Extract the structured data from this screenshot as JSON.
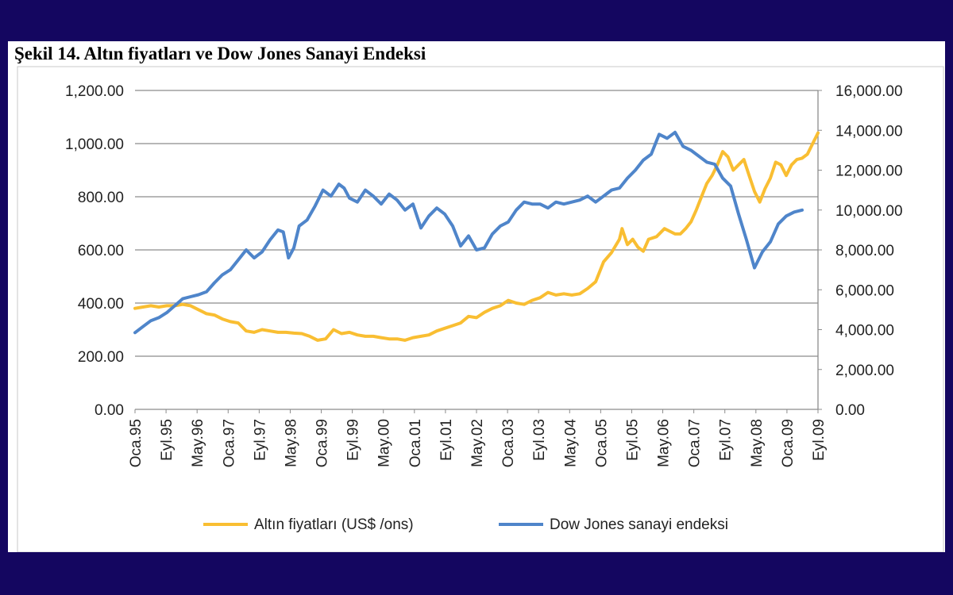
{
  "chart_data": {
    "type": "line",
    "title": "Şekil 14. Altın fiyatları ve Dow Jones Sanayi Endeksi",
    "xlabel": "",
    "ylabel_left": "",
    "ylabel_right": "",
    "x_ticks": [
      "Oca.95",
      "Eyl.95",
      "May.96",
      "Oca.97",
      "Eyl.97",
      "May.98",
      "Oca.99",
      "Eyl.99",
      "May.00",
      "Oca.01",
      "Eyl.01",
      "May.02",
      "Oca.03",
      "Eyl.03",
      "May.04",
      "Oca.05",
      "Eyl.05",
      "May.06",
      "Oca.07",
      "Eyl.07",
      "May.08",
      "Oca.09",
      "Eyl.09"
    ],
    "y_left_ticks": [
      "0.00",
      "200.00",
      "400.00",
      "600.00",
      "800.00",
      "1,000.00",
      "1,200.00"
    ],
    "y_right_ticks": [
      "0.00",
      "2,000.00",
      "4,000.00",
      "6,000.00",
      "8,000.00",
      "10,000.00",
      "12,000.00",
      "14,000.00",
      "16,000.00"
    ],
    "ylim_left": [
      0,
      1200
    ],
    "ylim_right": [
      0,
      16000
    ],
    "x_range_months": [
      0,
      176
    ],
    "grid": true,
    "legend_position": "bottom",
    "series": [
      {
        "name": "Altın fiyatları (US$ /ons)",
        "axis": "left",
        "color": "#F9BE32",
        "points": [
          [
            0,
            380
          ],
          [
            3,
            385
          ],
          [
            6,
            390
          ],
          [
            9,
            385
          ],
          [
            12,
            390
          ],
          [
            15,
            390
          ],
          [
            18,
            395
          ],
          [
            21,
            390
          ],
          [
            24,
            375
          ],
          [
            27,
            360
          ],
          [
            30,
            355
          ],
          [
            33,
            340
          ],
          [
            36,
            330
          ],
          [
            39,
            325
          ],
          [
            42,
            295
          ],
          [
            45,
            290
          ],
          [
            48,
            300
          ],
          [
            51,
            295
          ],
          [
            54,
            290
          ],
          [
            57,
            290
          ],
          [
            60,
            287
          ],
          [
            63,
            285
          ],
          [
            66,
            275
          ],
          [
            69,
            260
          ],
          [
            72,
            265
          ],
          [
            75,
            300
          ],
          [
            78,
            285
          ],
          [
            81,
            290
          ],
          [
            84,
            280
          ],
          [
            87,
            275
          ],
          [
            90,
            275
          ],
          [
            93,
            270
          ],
          [
            96,
            265
          ],
          [
            99,
            265
          ],
          [
            102,
            260
          ],
          [
            105,
            270
          ],
          [
            108,
            275
          ],
          [
            111,
            280
          ],
          [
            114,
            295
          ],
          [
            117,
            305
          ],
          [
            120,
            315
          ],
          [
            123,
            325
          ],
          [
            126,
            350
          ],
          [
            129,
            345
          ],
          [
            132,
            365
          ],
          [
            135,
            380
          ],
          [
            138,
            390
          ],
          [
            141,
            410
          ],
          [
            144,
            400
          ],
          [
            147,
            395
          ],
          [
            150,
            410
          ],
          [
            153,
            420
          ],
          [
            156,
            440
          ],
          [
            159,
            430
          ],
          [
            162,
            435
          ],
          [
            165,
            430
          ],
          [
            168,
            435
          ],
          [
            171,
            455
          ],
          [
            174,
            480
          ],
          [
            177,
            555
          ],
          [
            180,
            590
          ],
          [
            183,
            640
          ],
          [
            184,
            680
          ],
          [
            186,
            620
          ],
          [
            188,
            640
          ],
          [
            190,
            610
          ],
          [
            192,
            595
          ],
          [
            194,
            640
          ],
          [
            197,
            650
          ],
          [
            200,
            680
          ],
          [
            202,
            670
          ],
          [
            204,
            660
          ],
          [
            206,
            660
          ],
          [
            208,
            680
          ],
          [
            210,
            705
          ],
          [
            212,
            750
          ],
          [
            214,
            800
          ],
          [
            216,
            850
          ],
          [
            218,
            880
          ],
          [
            220,
            920
          ],
          [
            222,
            970
          ],
          [
            224,
            950
          ],
          [
            226,
            900
          ],
          [
            228,
            920
          ],
          [
            230,
            940
          ],
          [
            232,
            880
          ],
          [
            234,
            820
          ],
          [
            236,
            780
          ],
          [
            238,
            830
          ],
          [
            240,
            870
          ],
          [
            242,
            930
          ],
          [
            244,
            920
          ],
          [
            246,
            880
          ],
          [
            248,
            920
          ],
          [
            250,
            940
          ],
          [
            252,
            945
          ],
          [
            254,
            960
          ],
          [
            256,
            1000
          ],
          [
            258,
            1040
          ]
        ]
      },
      {
        "name": "Dow Jones sanayi endeksi",
        "axis": "right",
        "color": "#4F85CA",
        "points": [
          [
            0,
            3850
          ],
          [
            3,
            4150
          ],
          [
            6,
            4450
          ],
          [
            9,
            4600
          ],
          [
            12,
            4850
          ],
          [
            15,
            5200
          ],
          [
            18,
            5550
          ],
          [
            21,
            5650
          ],
          [
            24,
            5750
          ],
          [
            27,
            5900
          ],
          [
            30,
            6350
          ],
          [
            33,
            6750
          ],
          [
            36,
            7000
          ],
          [
            39,
            7500
          ],
          [
            42,
            8000
          ],
          [
            45,
            7600
          ],
          [
            48,
            7900
          ],
          [
            51,
            8500
          ],
          [
            54,
            9000
          ],
          [
            56,
            8900
          ],
          [
            58,
            7600
          ],
          [
            60,
            8100
          ],
          [
            62,
            9200
          ],
          [
            65,
            9500
          ],
          [
            68,
            10200
          ],
          [
            71,
            11000
          ],
          [
            74,
            10700
          ],
          [
            77,
            11300
          ],
          [
            79,
            11100
          ],
          [
            81,
            10600
          ],
          [
            84,
            10400
          ],
          [
            87,
            11000
          ],
          [
            90,
            10700
          ],
          [
            93,
            10300
          ],
          [
            96,
            10800
          ],
          [
            99,
            10500
          ],
          [
            102,
            10000
          ],
          [
            105,
            10300
          ],
          [
            108,
            9100
          ],
          [
            111,
            9700
          ],
          [
            114,
            10100
          ],
          [
            117,
            9800
          ],
          [
            120,
            9200
          ],
          [
            123,
            8200
          ],
          [
            126,
            8700
          ],
          [
            129,
            8000
          ],
          [
            132,
            8100
          ],
          [
            135,
            8800
          ],
          [
            138,
            9200
          ],
          [
            141,
            9400
          ],
          [
            144,
            10000
          ],
          [
            147,
            10400
          ],
          [
            150,
            10300
          ],
          [
            153,
            10300
          ],
          [
            156,
            10100
          ],
          [
            159,
            10400
          ],
          [
            162,
            10300
          ],
          [
            165,
            10400
          ],
          [
            168,
            10500
          ],
          [
            171,
            10700
          ],
          [
            174,
            10400
          ],
          [
            177,
            10700
          ],
          [
            180,
            11000
          ],
          [
            183,
            11100
          ],
          [
            186,
            11600
          ],
          [
            189,
            12000
          ],
          [
            192,
            12500
          ],
          [
            195,
            12800
          ],
          [
            198,
            13800
          ],
          [
            201,
            13600
          ],
          [
            204,
            13900
          ],
          [
            207,
            13200
          ],
          [
            210,
            13000
          ],
          [
            213,
            12700
          ],
          [
            216,
            12400
          ],
          [
            219,
            12300
          ],
          [
            222,
            11600
          ],
          [
            225,
            11200
          ],
          [
            228,
            9800
          ],
          [
            231,
            8500
          ],
          [
            234,
            7100
          ],
          [
            237,
            7900
          ],
          [
            240,
            8400
          ],
          [
            243,
            9300
          ],
          [
            246,
            9700
          ],
          [
            249,
            9900
          ],
          [
            252,
            10000
          ]
        ]
      }
    ]
  }
}
